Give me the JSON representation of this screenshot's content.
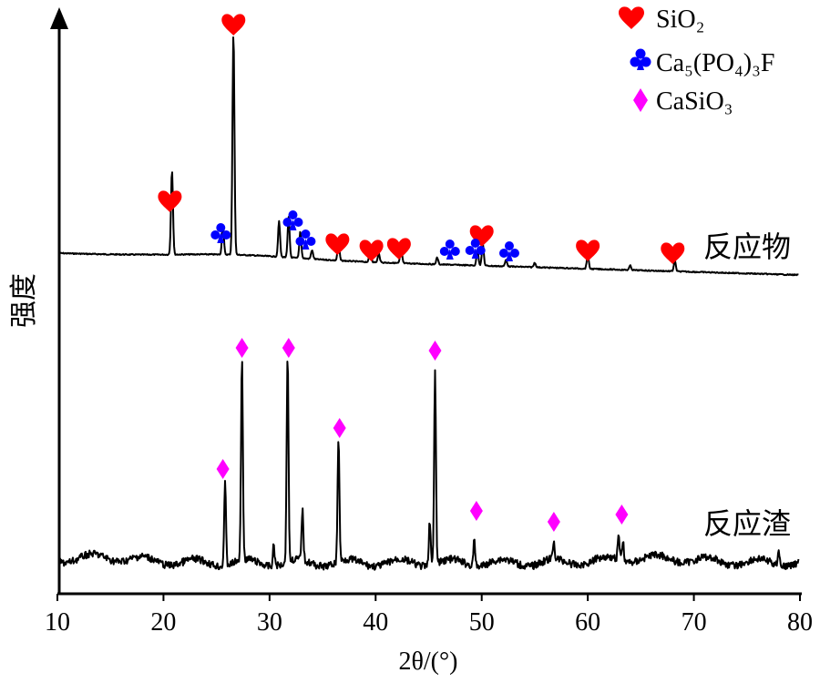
{
  "chart_data": {
    "type": "line",
    "xlabel": "2θ/(°)",
    "ylabel": "强度",
    "xlim": [
      10,
      80
    ],
    "xticks": [
      10,
      20,
      30,
      40,
      50,
      60,
      70,
      80
    ],
    "legend": {
      "placement": "top-right",
      "entries": [
        {
          "label": "SiO₂",
          "marker": "heart",
          "color": "#ff0000"
        },
        {
          "label": "Ca₅(PO₄)₃F",
          "marker": "club",
          "color": "#0000ff"
        },
        {
          "label": "CaSiO₃",
          "marker": "diamond",
          "color": "#ff00ff"
        }
      ]
    },
    "series": [
      {
        "name": "反应物",
        "baseline": 0.0,
        "peaks": [
          {
            "x": 20.8,
            "h": 0.38
          },
          {
            "x": 25.6,
            "h": 0.13
          },
          {
            "x": 26.6,
            "h": 1.0
          },
          {
            "x": 30.9,
            "h": 0.16
          },
          {
            "x": 31.8,
            "h": 0.18
          },
          {
            "x": 32.9,
            "h": 0.12
          },
          {
            "x": 34.0,
            "h": 0.04
          },
          {
            "x": 36.5,
            "h": 0.08
          },
          {
            "x": 39.5,
            "h": 0.06
          },
          {
            "x": 40.3,
            "h": 0.04
          },
          {
            "x": 42.4,
            "h": 0.07
          },
          {
            "x": 45.8,
            "h": 0.03
          },
          {
            "x": 49.6,
            "h": 0.07
          },
          {
            "x": 50.1,
            "h": 0.1
          },
          {
            "x": 52.3,
            "h": 0.03
          },
          {
            "x": 55.0,
            "h": 0.02
          },
          {
            "x": 60.0,
            "h": 0.06
          },
          {
            "x": 64.0,
            "h": 0.02
          },
          {
            "x": 68.2,
            "h": 0.05
          }
        ]
      },
      {
        "name": "反应渣",
        "baseline": 0.0,
        "peaks": [
          {
            "x": 25.8,
            "h": 0.4
          },
          {
            "x": 27.4,
            "h": 0.97
          },
          {
            "x": 30.4,
            "h": 0.1
          },
          {
            "x": 31.7,
            "h": 1.0
          },
          {
            "x": 33.1,
            "h": 0.24
          },
          {
            "x": 36.5,
            "h": 0.6
          },
          {
            "x": 45.1,
            "h": 0.22
          },
          {
            "x": 45.6,
            "h": 0.92
          },
          {
            "x": 49.3,
            "h": 0.12
          },
          {
            "x": 56.8,
            "h": 0.08
          },
          {
            "x": 62.9,
            "h": 0.12
          },
          {
            "x": 63.3,
            "h": 0.1
          },
          {
            "x": 78.0,
            "h": 0.08
          }
        ]
      }
    ],
    "markers": [
      {
        "series": "反应物",
        "phase": "SiO₂",
        "shape": "heart",
        "color": "#ff0000",
        "x": [
          20.6,
          26.6,
          36.4,
          39.6,
          42.2,
          50.0,
          60.0,
          68.0
        ]
      },
      {
        "series": "反应物",
        "phase": "Ca₅(PO₄)₃F",
        "shape": "club",
        "color": "#0000ff",
        "x": [
          25.4,
          32.2,
          33.4,
          47.0,
          49.4,
          52.6
        ]
      },
      {
        "series": "反应渣",
        "phase": "CaSiO₃",
        "shape": "diamond",
        "color": "#ff00ff",
        "x": [
          25.6,
          27.4,
          31.8,
          36.6,
          45.6,
          49.5,
          56.8,
          63.2
        ]
      }
    ]
  }
}
